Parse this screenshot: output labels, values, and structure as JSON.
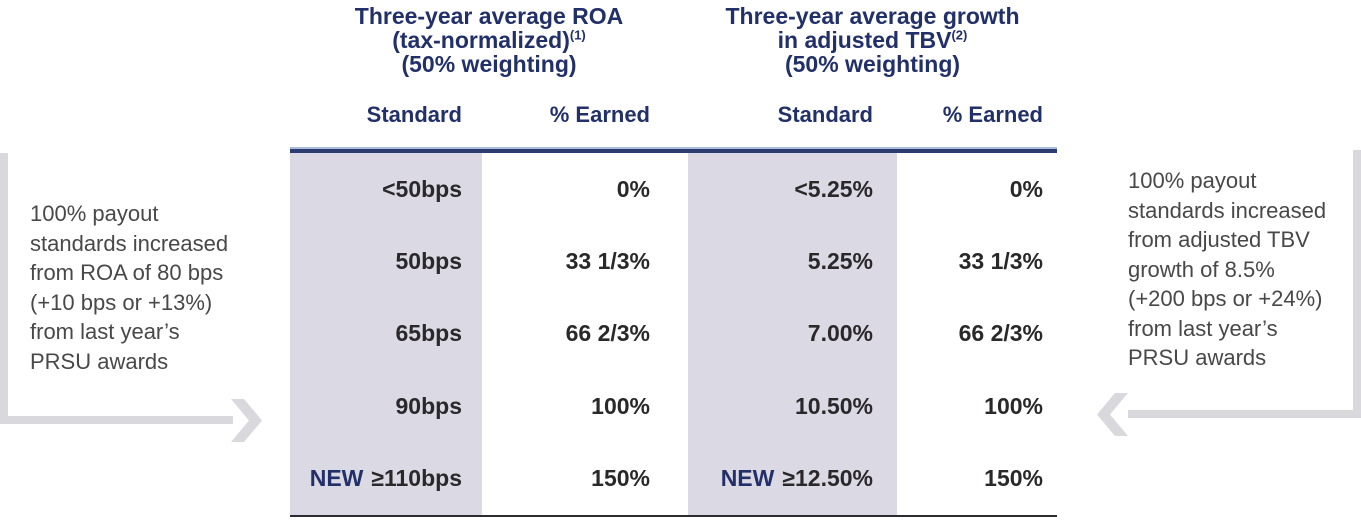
{
  "colors": {
    "navy": "#22306a",
    "rule-dark": "#2d3c6f",
    "rule-light": "#a9bcd9",
    "shade": "#dbd9e3",
    "body-text": "#2a282a",
    "note-text": "#48484a",
    "arrow": "#d9d8dd",
    "bottom-rule": "#2b2b30"
  },
  "table": {
    "groups": [
      {
        "line1": "Three-year average ROA",
        "line2": "(tax-normalized)",
        "footnote": "(1)",
        "line3": "(50% weighting)"
      },
      {
        "line1": "Three-year average growth",
        "line2": "in adjusted TBV",
        "footnote": "(2)",
        "line3": "(50% weighting)"
      }
    ],
    "sub_headers": [
      "Standard",
      "% Earned",
      "Standard",
      "% Earned"
    ],
    "rows": [
      {
        "c0": {
          "text": "<50bps"
        },
        "c1": {
          "text": "0%"
        },
        "c2": {
          "text": "<5.25%"
        },
        "c3": {
          "text": "0%"
        }
      },
      {
        "c0": {
          "text": "50bps"
        },
        "c1": {
          "text": "33 1/3%"
        },
        "c2": {
          "text": "5.25%"
        },
        "c3": {
          "text": "33 1/3%"
        }
      },
      {
        "c0": {
          "text": "65bps"
        },
        "c1": {
          "text": "66 2/3%"
        },
        "c2": {
          "text": "7.00%"
        },
        "c3": {
          "text": "66 2/3%"
        }
      },
      {
        "c0": {
          "text": "90bps"
        },
        "c1": {
          "text": "100%"
        },
        "c2": {
          "text": "10.50%"
        },
        "c3": {
          "text": "100%"
        }
      },
      {
        "c0": {
          "prefix": "NEW",
          "text": "≥110bps"
        },
        "c1": {
          "text": "150%"
        },
        "c2": {
          "prefix": "NEW",
          "text": "≥12.50%"
        },
        "c3": {
          "text": "150%"
        }
      }
    ]
  },
  "left_note": {
    "lines": [
      "100% payout",
      "standards increased",
      "from ROA of 80 bps",
      "(+10 bps or +13%)",
      "from last year’s",
      "PRSU awards"
    ]
  },
  "right_note": {
    "lines": [
      "100% payout",
      "standards increased",
      "from adjusted TBV",
      "growth of 8.5%",
      "(+200 bps or +24%)",
      "from last year’s",
      "PRSU awards"
    ]
  }
}
